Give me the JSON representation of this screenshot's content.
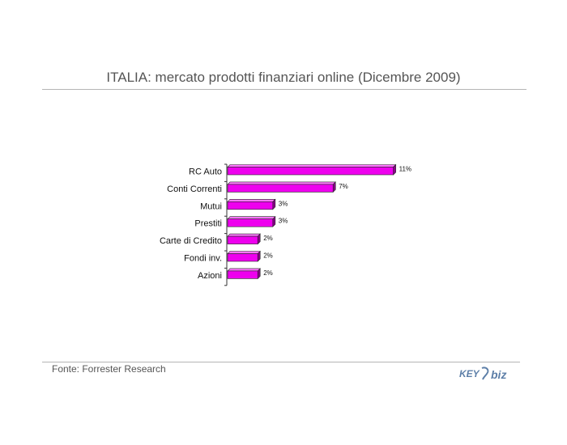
{
  "page": {
    "title": "ITALIA: mercato prodotti finanziari online (Dicembre 2009)",
    "source": "Fonte: Forrester Research",
    "logo_text": "KEY4biz"
  },
  "colors": {
    "bar_front": "#ee00ee",
    "bar_top": "#ff77ff",
    "bar_side": "#8a008a",
    "text": "#555555"
  },
  "chart_data": {
    "type": "bar",
    "orientation": "horizontal",
    "categories": [
      "RC Auto",
      "Conti Correnti",
      "Mutui",
      "Prestiti",
      "Carte di Credito",
      "Fondi inv.",
      "Azioni"
    ],
    "values": [
      11,
      7,
      3,
      3,
      2,
      2,
      2
    ],
    "value_labels": [
      "11%",
      "7%",
      "3%",
      "3%",
      "2%",
      "2%",
      "2%"
    ],
    "unit": "%",
    "grid": false,
    "legend": "none"
  }
}
